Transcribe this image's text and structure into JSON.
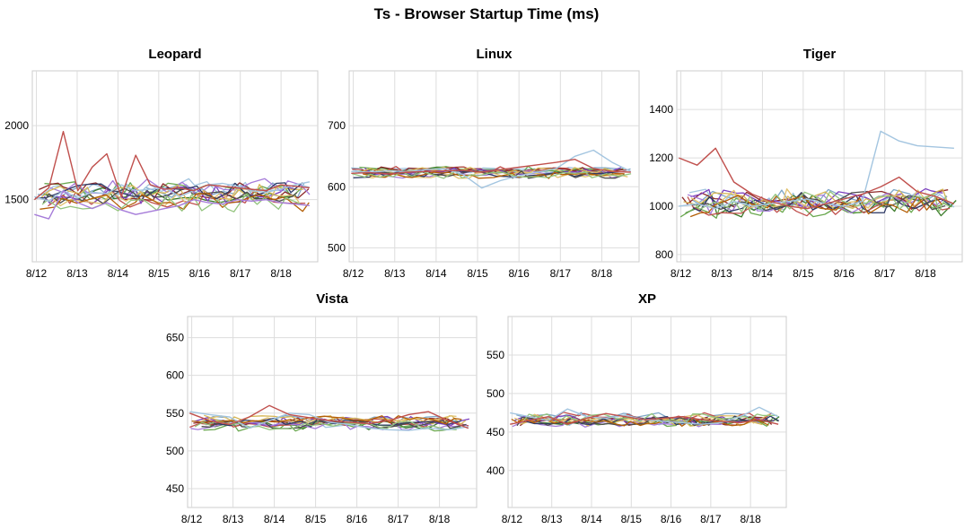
{
  "page": {
    "title": "Ts - Browser Startup Time (ms)"
  },
  "colors": {
    "grid": "#dddddd",
    "frame": "#cccccc",
    "series_palette": [
      "#7fa8c8",
      "#a3c5e0",
      "#3b7b2a",
      "#6aa84f",
      "#c0504d",
      "#8e2a2a",
      "#7b3fbf",
      "#a67cd9",
      "#d6b656",
      "#e1c16e",
      "#2e3a66",
      "#4d4d4d",
      "#b45f06",
      "#93c47d",
      "#c27ba0"
    ]
  },
  "chart_data": [
    {
      "type": "line",
      "title": "Leopard",
      "xlabel": "",
      "ylabel": "",
      "x_ticks": [
        "8/12",
        "8/13",
        "8/14",
        "8/15",
        "8/16",
        "8/17",
        "8/18"
      ],
      "xlim": [
        -0.1,
        6.9
      ],
      "y_ticks": [
        1500,
        2000
      ],
      "ylim": [
        1080,
        2370
      ],
      "grid": true,
      "base_level": 1530,
      "spread": 55,
      "noise": 60,
      "series": [
        {
          "values": [
            1520,
            1490,
            1560,
            1510,
            1550,
            1540,
            1600,
            1560,
            1570,
            1580,
            1520,
            1560,
            1600,
            1610,
            1590,
            1560,
            1550,
            1570,
            1600,
            1620
          ]
        },
        {
          "values": [
            1500,
            1580,
            1960,
            1560,
            1720,
            1810,
            1520,
            1800,
            1600,
            1570,
            1580,
            1560,
            1600,
            1590,
            1580,
            1570,
            1560,
            1600,
            1590,
            1580
          ]
        },
        {
          "values": [
            1400,
            1370,
            1560,
            1480,
            1440,
            1480,
            1430,
            1400,
            1420,
            1440,
            1460,
            1500,
            1480,
            1470,
            1500,
            1490,
            1500,
            1480,
            1470,
            1460
          ]
        }
      ]
    },
    {
      "type": "line",
      "title": "Linux",
      "xlabel": "",
      "ylabel": "",
      "x_ticks": [
        "8/12",
        "8/13",
        "8/14",
        "8/15",
        "8/16",
        "8/17",
        "8/18"
      ],
      "xlim": [
        -0.1,
        6.9
      ],
      "y_ticks": [
        500,
        600,
        700
      ],
      "ylim": [
        477,
        790
      ],
      "grid": true,
      "base_level": 623,
      "spread": 5,
      "noise": 6,
      "series": [
        {
          "values": [
            625,
            624,
            626,
            625,
            628,
            630,
            620,
            598,
            610,
            618,
            624,
            630,
            650,
            660,
            640,
            625
          ]
        },
        {
          "values": [
            622,
            623,
            621,
            624,
            625,
            626,
            627,
            624,
            628,
            632,
            636,
            640,
            645,
            630,
            625,
            624
          ]
        }
      ]
    },
    {
      "type": "line",
      "title": "Tiger",
      "xlabel": "",
      "ylabel": "",
      "x_ticks": [
        "8/12",
        "8/13",
        "8/14",
        "8/15",
        "8/16",
        "8/17",
        "8/18"
      ],
      "xlim": [
        -0.1,
        6.9
      ],
      "y_ticks": [
        800,
        1000,
        1200,
        1400
      ],
      "ylim": [
        770,
        1560
      ],
      "grid": true,
      "base_level": 1010,
      "spread": 25,
      "noise": 45,
      "series": [
        {
          "values": [
            1000,
            1010,
            990,
            1020,
            1000,
            1010,
            1020,
            1030,
            1010,
            1000,
            1020,
            1310,
            1270,
            1250,
            1245,
            1240
          ]
        },
        {
          "values": [
            1200,
            1170,
            1240,
            1100,
            1050,
            1020,
            1000,
            990,
            1010,
            1030,
            1050,
            1080,
            1120,
            1060,
            1040,
            1010
          ]
        }
      ]
    },
    {
      "type": "line",
      "title": "Vista",
      "xlabel": "",
      "ylabel": "",
      "x_ticks": [
        "8/12",
        "8/13",
        "8/14",
        "8/15",
        "8/16",
        "8/17",
        "8/18"
      ],
      "xlim": [
        -0.1,
        6.9
      ],
      "y_ticks": [
        450,
        500,
        550,
        600,
        650
      ],
      "ylim": [
        425,
        678
      ],
      "grid": true,
      "base_level": 537,
      "spread": 6,
      "noise": 6,
      "series": [
        {
          "values": [
            552,
            548,
            545,
            530,
            540,
            550,
            548,
            538,
            535,
            530,
            528,
            527,
            530,
            528,
            532
          ]
        },
        {
          "values": [
            550,
            540,
            535,
            545,
            560,
            548,
            544,
            540,
            538,
            536,
            540,
            548,
            552,
            540,
            530
          ]
        }
      ]
    },
    {
      "type": "line",
      "title": "XP",
      "xlabel": "",
      "ylabel": "",
      "x_ticks": [
        "8/12",
        "8/13",
        "8/14",
        "8/15",
        "8/16",
        "8/17",
        "8/18"
      ],
      "xlim": [
        -0.1,
        6.9
      ],
      "y_ticks": [
        400,
        450,
        500,
        550
      ],
      "ylim": [
        352,
        600
      ],
      "grid": true,
      "base_level": 466,
      "spread": 5,
      "noise": 6,
      "series": [
        {
          "values": [
            475,
            470,
            465,
            480,
            470,
            468,
            472,
            466,
            464,
            462,
            460,
            462,
            470,
            482,
            470
          ]
        },
        {
          "values": [
            460,
            465,
            470,
            460,
            468,
            474,
            470,
            466,
            468,
            470,
            466,
            464,
            462,
            466,
            460
          ]
        }
      ]
    }
  ]
}
